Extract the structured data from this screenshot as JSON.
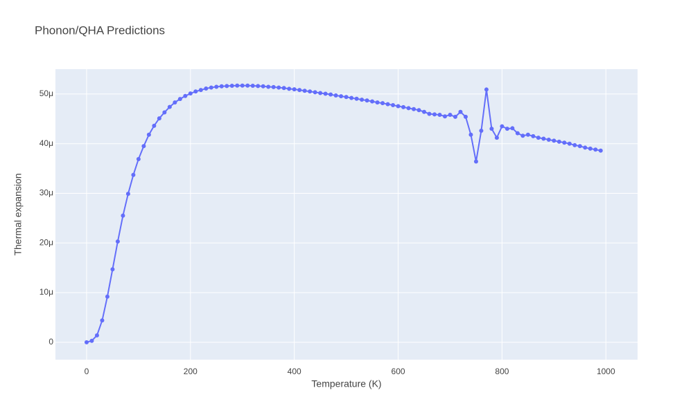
{
  "chart_data": {
    "type": "line",
    "title": "Phonon/QHA Predictions",
    "xlabel": "Temperature (K)",
    "ylabel": "Thermal expansion",
    "color": "#636efa",
    "grid": true,
    "x": [
      0,
      10,
      20,
      30,
      40,
      50,
      60,
      70,
      80,
      90,
      100,
      110,
      120,
      130,
      140,
      150,
      160,
      170,
      180,
      190,
      200,
      210,
      220,
      230,
      240,
      250,
      260,
      270,
      280,
      290,
      300,
      310,
      320,
      330,
      340,
      350,
      360,
      370,
      380,
      390,
      400,
      410,
      420,
      430,
      440,
      450,
      460,
      470,
      480,
      490,
      500,
      510,
      520,
      530,
      540,
      550,
      560,
      570,
      580,
      590,
      600,
      610,
      620,
      630,
      640,
      650,
      660,
      670,
      680,
      690,
      700,
      710,
      720,
      730,
      740,
      750,
      760,
      770,
      780,
      790,
      800,
      810,
      820,
      830,
      840,
      850,
      860,
      870,
      880,
      890,
      900,
      910,
      920,
      930,
      940,
      950,
      960,
      970,
      980,
      990
    ],
    "values": [
      0,
      3e-07,
      1.4e-06,
      4.4e-06,
      9.2e-06,
      1.47e-05,
      2.03e-05,
      2.55e-05,
      2.99e-05,
      3.37e-05,
      3.69e-05,
      3.95e-05,
      4.18e-05,
      4.36e-05,
      4.51e-05,
      4.63e-05,
      4.74e-05,
      4.83e-05,
      4.9e-05,
      4.96e-05,
      5.01e-05,
      5.05e-05,
      5.08e-05,
      5.11e-05,
      5.13e-05,
      5.145e-05,
      5.155e-05,
      5.16e-05,
      5.165e-05,
      5.17e-05,
      5.17e-05,
      5.17e-05,
      5.165e-05,
      5.16e-05,
      5.155e-05,
      5.145e-05,
      5.14e-05,
      5.13e-05,
      5.12e-05,
      5.105e-05,
      5.095e-05,
      5.08e-05,
      5.065e-05,
      5.05e-05,
      5.035e-05,
      5.02e-05,
      5.005e-05,
      4.99e-05,
      4.97e-05,
      4.955e-05,
      4.94e-05,
      4.92e-05,
      4.905e-05,
      4.885e-05,
      4.87e-05,
      4.85e-05,
      4.83e-05,
      4.815e-05,
      4.795e-05,
      4.775e-05,
      4.755e-05,
      4.735e-05,
      4.715e-05,
      4.695e-05,
      4.675e-05,
      4.64e-05,
      4.6e-05,
      4.59e-05,
      4.58e-05,
      4.55e-05,
      4.58e-05,
      4.54e-05,
      4.64e-05,
      4.54e-05,
      4.18e-05,
      3.64e-05,
      4.26e-05,
      5.09e-05,
      4.3e-05,
      4.12e-05,
      4.35e-05,
      4.3e-05,
      4.31e-05,
      4.21e-05,
      4.16e-05,
      4.18e-05,
      4.15e-05,
      4.12e-05,
      4.1e-05,
      4.08e-05,
      4.06e-05,
      4.04e-05,
      4.02e-05,
      4e-05,
      3.97e-05,
      3.95e-05,
      3.92e-05,
      3.9e-05,
      3.88e-05,
      3.86e-05
    ],
    "xlim": [
      -60,
      1061
    ],
    "xticks": [
      0,
      200,
      400,
      600,
      800,
      1000
    ],
    "ylim": [
      -3.5e-06,
      5.5e-05
    ],
    "yticks": [
      0,
      {
        "value": 1e-05,
        "label": "10μ"
      },
      {
        "value": 2e-05,
        "label": "20μ"
      },
      {
        "value": 3e-05,
        "label": "30μ"
      },
      {
        "value": 4e-05,
        "label": "40μ"
      },
      {
        "value": 5e-05,
        "label": "50μ"
      }
    ]
  }
}
